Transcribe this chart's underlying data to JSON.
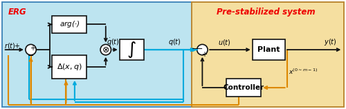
{
  "erg_bg_color": "#bde4f0",
  "prestab_bg_color": "#f5dfa0",
  "erg_border_color": "#4488bb",
  "prestab_border_color": "#bb8833",
  "erg_label": "ERG",
  "prestab_label": "Pre-stabilized system",
  "label_color": "#ee0000",
  "bk": "#111111",
  "bl": "#00aadd",
  "or_": "#dd8800",
  "box_fill": "#ffffff",
  "box_border": "#111111",
  "figsize": [
    5.0,
    1.58
  ],
  "dpi": 100
}
